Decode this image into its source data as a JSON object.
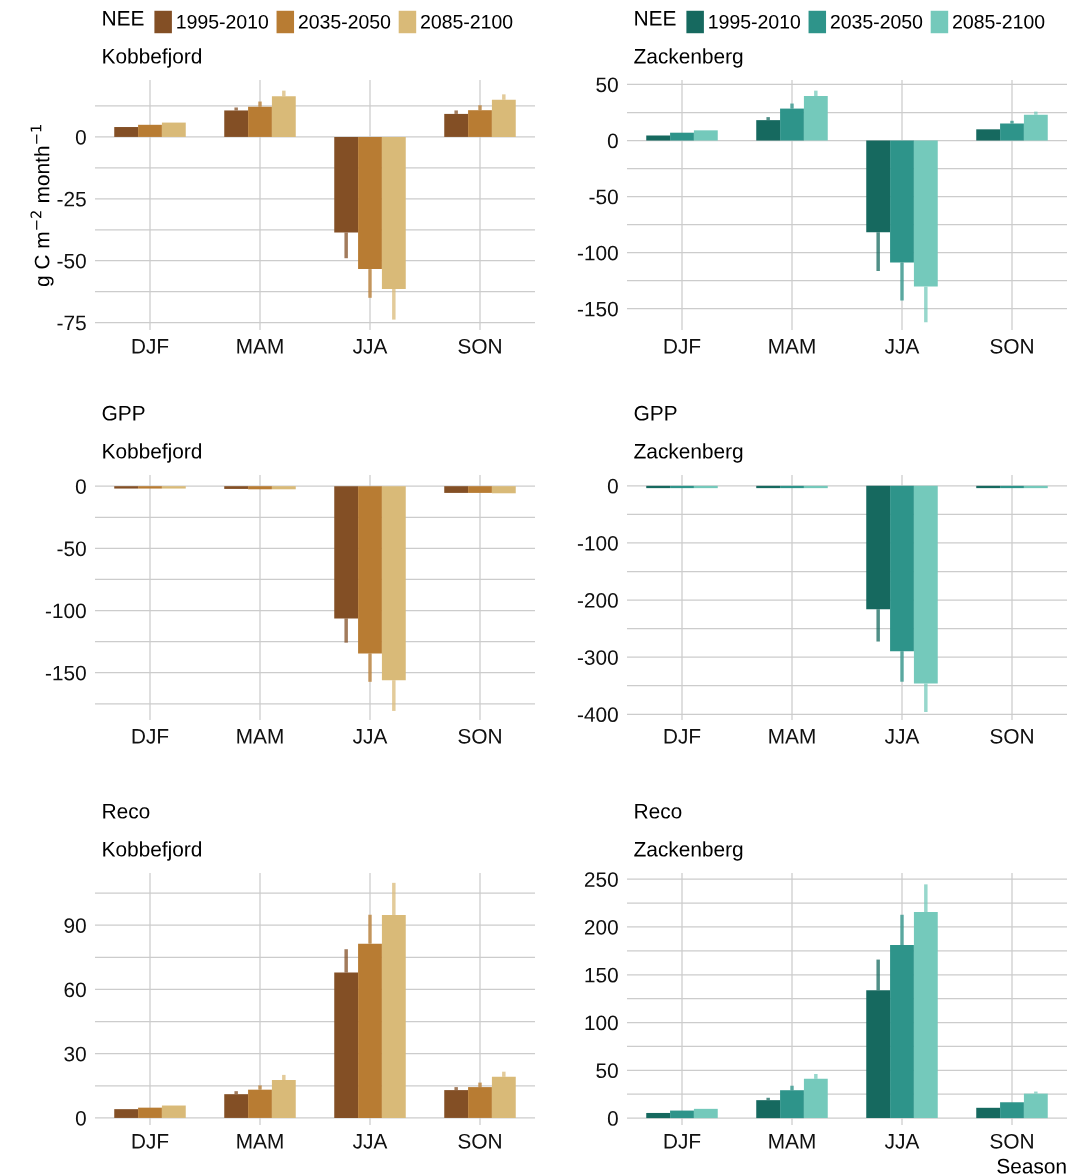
{
  "chart_data": [
    {
      "type": "bar",
      "title": "NEE",
      "subtitle": "Kobbefjord",
      "ylabel": "g C m$^{−2}$ month$^{−1}$",
      "categories": [
        "DJF",
        "MAM",
        "JJA",
        "SON"
      ],
      "legend": "top",
      "grid": true,
      "ylim": [
        -78,
        23
      ],
      "yticks": [
        {
          "value": -75,
          "label": "-75"
        },
        {
          "value": -62.5,
          "label": null
        },
        {
          "value": -50,
          "label": "-50"
        },
        {
          "value": -37.5,
          "label": null
        },
        {
          "value": -25,
          "label": "-25"
        },
        {
          "value": -12.5,
          "label": null
        },
        0,
        {
          "value": 12.5,
          "label": null
        }
      ],
      "series": [
        {
          "name": "1995-2010",
          "color": "#834f25",
          "values": [
            4.0,
            10.7,
            -38.6,
            9.3
          ],
          "errors": [
            null,
            [
              10.7,
              11.9
            ],
            [
              -49.0,
              -38.6
            ],
            [
              9.3,
              10.7
            ]
          ]
        },
        {
          "name": "2035-2050",
          "color": "#b87c33",
          "values": [
            4.9,
            12.2,
            -53.4,
            10.8
          ],
          "errors": [
            null,
            [
              12.2,
              14.3
            ],
            [
              -65.0,
              -53.4
            ],
            [
              10.8,
              12.8
            ]
          ]
        },
        {
          "name": "2085-2100",
          "color": "#d9ba78",
          "values": [
            5.8,
            16.4,
            -61.4,
            15.0
          ],
          "errors": [
            null,
            [
              16.4,
              18.7
            ],
            [
              -73.8,
              -61.4
            ],
            [
              15.0,
              17.2
            ]
          ]
        }
      ]
    },
    {
      "type": "bar",
      "title": "NEE",
      "subtitle": "Zackenberg",
      "categories": [
        "DJF",
        "MAM",
        "JJA",
        "SON"
      ],
      "legend": "top",
      "grid": true,
      "ylim": [
        -169,
        54
      ],
      "yticks": [
        -150,
        {
          "value": -125,
          "label": null
        },
        -100,
        {
          "value": -75,
          "label": null
        },
        -50,
        {
          "value": -25,
          "label": null
        },
        0,
        {
          "value": 25,
          "label": null
        },
        50
      ],
      "series": [
        {
          "name": "1995-2010",
          "color": "#16695f",
          "values": [
            4.5,
            18.2,
            -81.8,
            10.0
          ],
          "errors": [
            null,
            [
              18.2,
              20.9
            ],
            [
              -116.4,
              -81.8
            ],
            null
          ]
        },
        {
          "name": "2035-2050",
          "color": "#2e948a",
          "values": [
            7.0,
            28.5,
            -108.8,
            15.2
          ],
          "errors": [
            null,
            [
              28.5,
              33.0
            ],
            [
              -142.7,
              -108.8
            ],
            [
              15.2,
              17.6
            ]
          ]
        },
        {
          "name": "2085-2100",
          "color": "#74c9bb",
          "values": [
            9.1,
            39.7,
            -130.3,
            23.0
          ],
          "errors": [
            null,
            [
              39.7,
              44.5
            ],
            [
              -162.1,
              -130.3
            ],
            [
              23.0,
              25.8
            ]
          ]
        }
      ]
    },
    {
      "type": "bar",
      "title": "GPP",
      "subtitle": "Kobbefjord",
      "categories": [
        "DJF",
        "MAM",
        "JJA",
        "SON"
      ],
      "grid": true,
      "ylim": [
        -188,
        9
      ],
      "yticks": [
        {
          "value": -175,
          "label": null
        },
        -150,
        {
          "value": -125,
          "label": null
        },
        -100,
        {
          "value": -75,
          "label": null
        },
        -50,
        {
          "value": -25,
          "label": null
        },
        0
      ],
      "series": [
        {
          "color": "#834f25",
          "values": [
            -1.9,
            -2.2,
            -106.3,
            -5.4
          ],
          "errors": [
            null,
            null,
            [
              -125.8,
              -106.3
            ],
            null
          ]
        },
        {
          "color": "#b87c33",
          "values": [
            -1.9,
            -2.5,
            -134.5,
            -5.4
          ],
          "errors": [
            null,
            null,
            [
              -157.3,
              -134.5
            ],
            null
          ]
        },
        {
          "color": "#d9ba78",
          "values": [
            -1.9,
            -2.5,
            -156.0,
            -5.7
          ],
          "errors": [
            null,
            null,
            [
              -180.7,
              -156.0
            ],
            null
          ]
        }
      ]
    },
    {
      "type": "bar",
      "title": "GPP",
      "subtitle": "Zackenberg",
      "categories": [
        "DJF",
        "MAM",
        "JJA",
        "SON"
      ],
      "grid": true,
      "ylim": [
        -410,
        19
      ],
      "yticks": [
        -400,
        {
          "value": -350,
          "label": null
        },
        -300,
        {
          "value": -250,
          "label": null
        },
        -200,
        {
          "value": -150,
          "label": null
        },
        -100,
        {
          "value": -50,
          "label": null
        },
        0
      ],
      "series": [
        {
          "color": "#16695f",
          "values": [
            -4,
            -4,
            -216,
            -4
          ],
          "errors": [
            null,
            null,
            [
              -272.6,
              -216
            ],
            null
          ]
        },
        {
          "color": "#2e948a",
          "values": [
            -4,
            -4,
            -289.5,
            -4
          ],
          "errors": [
            null,
            null,
            [
              -343,
              -289.5
            ],
            null
          ]
        },
        {
          "color": "#74c9bb",
          "values": [
            -4,
            -4,
            -346,
            -4
          ],
          "errors": [
            null,
            null,
            [
              -396,
              -346
            ],
            null
          ]
        }
      ]
    },
    {
      "type": "bar",
      "title": "Reco",
      "subtitle": "Kobbefjord",
      "categories": [
        "DJF",
        "MAM",
        "JJA",
        "SON"
      ],
      "grid": true,
      "ylim": [
        -3.3,
        114.4
      ],
      "yticks": [
        0,
        {
          "value": 15,
          "label": null
        },
        30,
        {
          "value": 45,
          "label": null
        },
        60,
        {
          "value": 75,
          "label": null
        },
        90,
        {
          "value": 105,
          "label": null
        }
      ],
      "series": [
        {
          "color": "#834f25",
          "values": [
            4.1,
            11.1,
            67.9,
            13.0
          ],
          "errors": [
            null,
            [
              11.1,
              12.5
            ],
            [
              67.9,
              78.8
            ],
            [
              13.0,
              14.4
            ]
          ]
        },
        {
          "color": "#b87c33",
          "values": [
            4.8,
            13.2,
            81.4,
            14.4
          ],
          "errors": [
            null,
            [
              13.2,
              15.2
            ],
            [
              81.4,
              94.9
            ],
            [
              14.4,
              16.5
            ]
          ]
        },
        {
          "color": "#d9ba78",
          "values": [
            5.8,
            17.7,
            94.8,
            19.2
          ],
          "errors": [
            null,
            [
              17.7,
              20.1
            ],
            [
              94.8,
              109.8
            ],
            [
              19.2,
              21.6
            ]
          ]
        }
      ]
    },
    {
      "type": "bar",
      "title": "Reco",
      "subtitle": "Zackenberg",
      "xlabel": "Season",
      "categories": [
        "DJF",
        "MAM",
        "JJA",
        "SON"
      ],
      "grid": true,
      "ylim": [
        -7.2,
        256.5
      ],
      "yticks": [
        0,
        {
          "value": 25,
          "label": null
        },
        50,
        {
          "value": 75,
          "label": null
        },
        100,
        {
          "value": 125,
          "label": null
        },
        150,
        {
          "value": 175,
          "label": null
        },
        200,
        {
          "value": 225,
          "label": null
        },
        250
      ],
      "series": [
        {
          "color": "#16695f",
          "values": [
            5.4,
            18.8,
            133.8,
            10.8
          ],
          "errors": [
            null,
            [
              18.8,
              21.3
            ],
            [
              133.8,
              165.9
            ],
            null
          ]
        },
        {
          "color": "#2e948a",
          "values": [
            7.9,
            29.2,
            181.1,
            16.6
          ],
          "errors": [
            null,
            [
              29.2,
              33.9
            ],
            [
              181.1,
              212.8
            ],
            null
          ]
        },
        {
          "color": "#74c9bb",
          "values": [
            9.7,
            41.1,
            215.7,
            25.6
          ],
          "errors": [
            null,
            [
              41.1,
              46.2
            ],
            [
              215.7,
              244.6
            ],
            [
              25.6,
              27.8
            ]
          ]
        }
      ]
    }
  ]
}
